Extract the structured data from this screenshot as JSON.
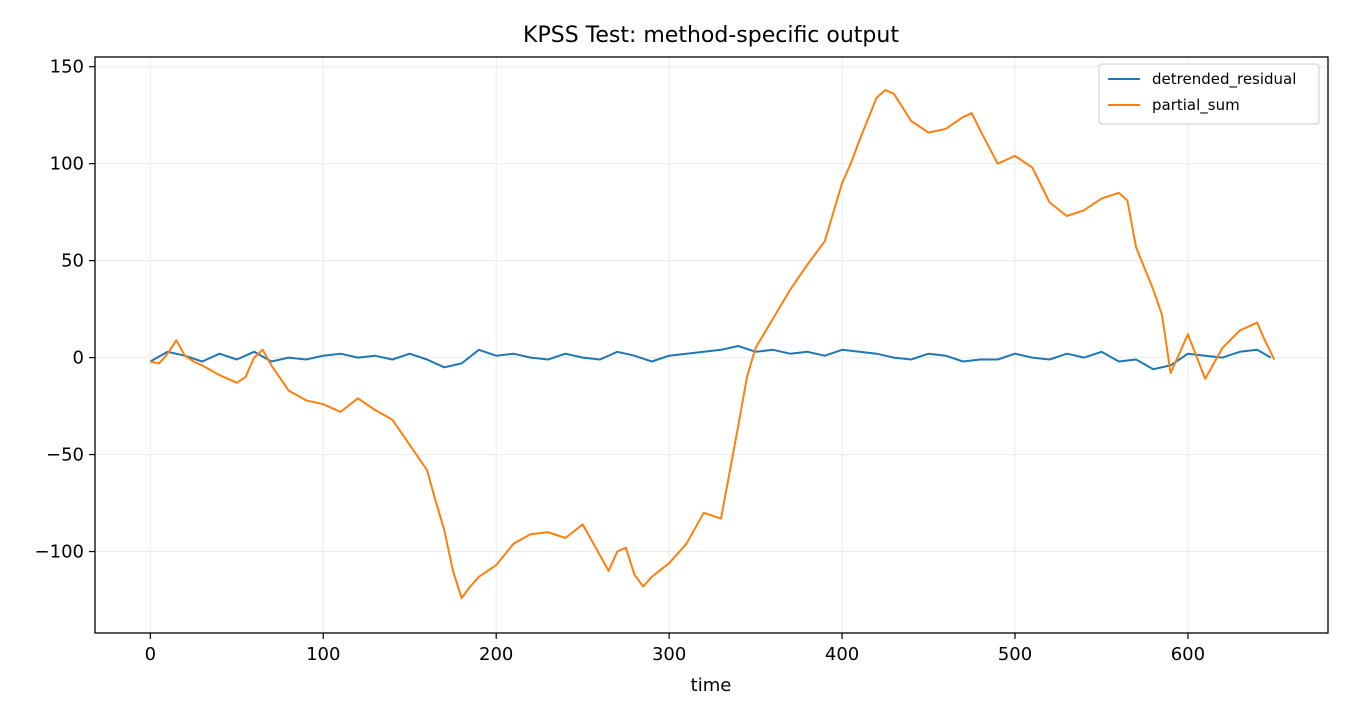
{
  "chart_data": {
    "type": "line",
    "title": "KPSS Test: method-specific output",
    "xlabel": "time",
    "ylabel": "",
    "xlim": [
      -32,
      681
    ],
    "ylim": [
      -142,
      155
    ],
    "x_ticks": [
      0,
      100,
      200,
      300,
      400,
      500,
      600
    ],
    "y_ticks": [
      -100,
      -50,
      0,
      50,
      100,
      150
    ],
    "x_tick_labels": [
      "0",
      "100",
      "200",
      "300",
      "400",
      "500",
      "600"
    ],
    "y_tick_labels": [
      "−100",
      "−50",
      "0",
      "50",
      "100",
      "150"
    ],
    "grid": true,
    "legend_position": "top-right",
    "series": [
      {
        "name": "detrended_residual",
        "color": "#1f77b4",
        "x": [
          0,
          10,
          20,
          30,
          40,
          50,
          60,
          70,
          80,
          90,
          100,
          110,
          120,
          130,
          140,
          150,
          160,
          170,
          180,
          190,
          200,
          210,
          220,
          230,
          240,
          250,
          260,
          270,
          280,
          290,
          300,
          310,
          320,
          330,
          340,
          350,
          360,
          370,
          380,
          390,
          400,
          410,
          420,
          430,
          440,
          450,
          460,
          470,
          480,
          490,
          500,
          510,
          520,
          530,
          540,
          550,
          560,
          570,
          580,
          590,
          600,
          610,
          620,
          630,
          640,
          648
        ],
        "y": [
          -2,
          3,
          1,
          -2,
          2,
          -1,
          3,
          -2,
          0,
          -1,
          1,
          2,
          0,
          1,
          -1,
          2,
          -1,
          -5,
          -3,
          4,
          1,
          2,
          0,
          -1,
          2,
          0,
          -1,
          3,
          1,
          -2,
          1,
          2,
          3,
          4,
          6,
          3,
          4,
          2,
          3,
          1,
          4,
          3,
          2,
          0,
          -1,
          2,
          1,
          -2,
          -1,
          -1,
          2,
          0,
          -1,
          2,
          0,
          3,
          -2,
          -1,
          -6,
          -4,
          2,
          1,
          0,
          3,
          4,
          0
        ]
      },
      {
        "name": "partial_sum",
        "color": "#ff7f0e",
        "x": [
          0,
          5,
          10,
          15,
          20,
          25,
          30,
          40,
          50,
          55,
          60,
          65,
          70,
          80,
          90,
          100,
          110,
          120,
          130,
          140,
          150,
          160,
          165,
          170,
          175,
          180,
          185,
          190,
          200,
          210,
          220,
          230,
          240,
          250,
          260,
          265,
          270,
          275,
          280,
          285,
          290,
          300,
          310,
          320,
          330,
          340,
          345,
          350,
          360,
          370,
          380,
          390,
          400,
          405,
          410,
          420,
          425,
          430,
          440,
          450,
          460,
          470,
          475,
          480,
          490,
          500,
          510,
          520,
          530,
          540,
          550,
          560,
          565,
          570,
          580,
          585,
          590,
          600,
          610,
          620,
          630,
          640,
          645,
          650
        ],
        "y": [
          -2,
          -3,
          2,
          9,
          1,
          -2,
          -4,
          -9,
          -13,
          -10,
          0,
          4,
          -4,
          -17,
          -22,
          -24,
          -28,
          -21,
          -27,
          -32,
          -45,
          -58,
          -74,
          -89,
          -110,
          -124,
          -118,
          -113,
          -107,
          -96,
          -91,
          -90,
          -93,
          -86,
          -102,
          -110,
          -100,
          -98,
          -112,
          -118,
          -113,
          -106,
          -96,
          -80,
          -83,
          -35,
          -10,
          5,
          20,
          35,
          48,
          60,
          90,
          100,
          112,
          134,
          138,
          136,
          122,
          116,
          118,
          124,
          126,
          117,
          100,
          104,
          98,
          80,
          73,
          76,
          82,
          85,
          81,
          57,
          35,
          22,
          -8,
          12,
          -11,
          5,
          14,
          18,
          8,
          -1
        ]
      }
    ]
  }
}
